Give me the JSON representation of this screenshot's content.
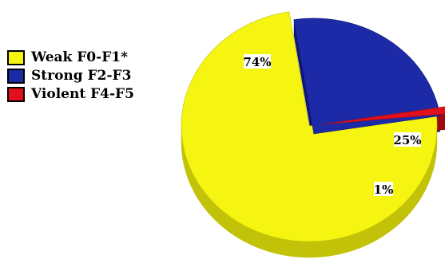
{
  "chart_data": {
    "type": "pie",
    "style": "3d exploded",
    "title": "",
    "legend_position": "left",
    "categories": [
      "Weak F0-F1*",
      "Strong F2-F3",
      "Violent F4-F5"
    ],
    "values": [
      74,
      25,
      1
    ],
    "data_labels": [
      "74%",
      "25%",
      "1%"
    ],
    "colors": [
      "#f5f511",
      "#1c2aa8",
      "#e2101a"
    ],
    "side_colors": [
      "#c2c208",
      "#0f1870",
      "#9c0a10"
    ]
  }
}
